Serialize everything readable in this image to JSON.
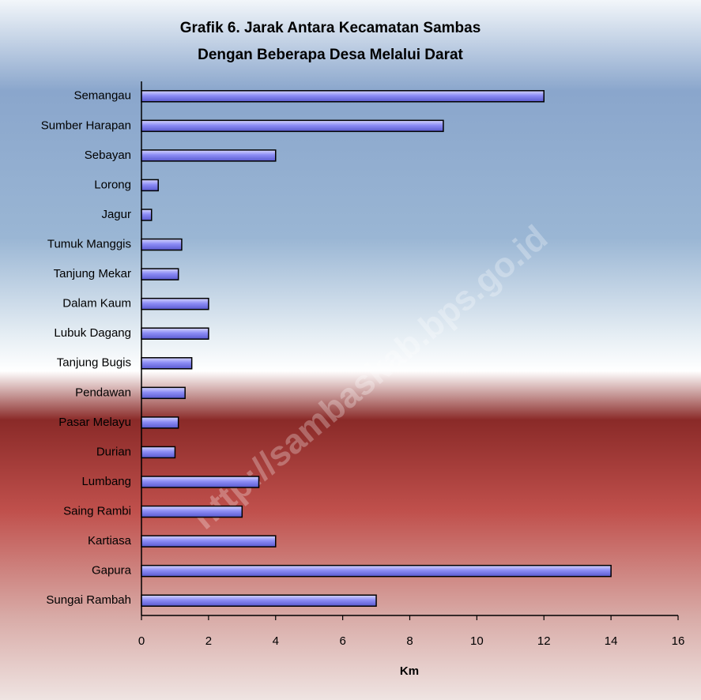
{
  "chart_data": {
    "type": "bar",
    "orientation": "horizontal",
    "title": [
      "Grafik 6. Jarak Antara Kecamatan Sambas",
      "Dengan Beberapa Desa Melalui Darat"
    ],
    "xlabel": "Km",
    "watermark": "http://sambaskab.bps.go.id",
    "categories": [
      "Semangau",
      "Sumber Harapan",
      "Sebayan",
      "Lorong",
      "Jagur",
      "Tumuk Manggis",
      "Tanjung Mekar",
      "Dalam Kaum",
      "Lubuk Dagang",
      "Tanjung Bugis",
      "Pendawan",
      "Pasar Melayu",
      "Durian",
      "Lumbang",
      "Saing Rambi",
      "Kartiasa",
      "Gapura",
      "Sungai Rambah"
    ],
    "values": [
      12,
      9,
      4,
      0.5,
      0.3,
      1.2,
      1.1,
      2,
      2,
      1.5,
      1.3,
      1.1,
      1,
      3.5,
      3,
      4,
      14,
      7
    ],
    "color": "#8c8cf5",
    "xlim": [
      0,
      16
    ],
    "xticks": [
      0,
      2,
      4,
      6,
      8,
      10,
      12,
      14,
      16
    ]
  }
}
